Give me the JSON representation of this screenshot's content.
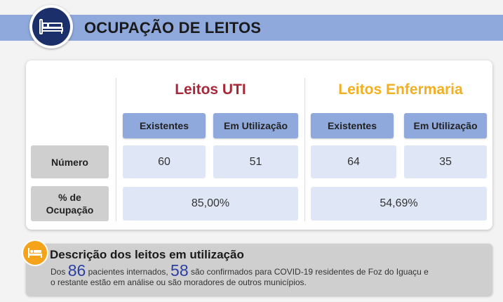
{
  "header": {
    "title": "OCUPAÇÃO DE LEITOS",
    "icon": "bed-icon",
    "band_color": "#8fa9dc",
    "circle_color": "#1b2f6b"
  },
  "uti": {
    "title": "Leitos UTI",
    "title_color": "#a8283a",
    "col_existentes": "Existentes",
    "col_em_utilizacao": "Em Utilização",
    "existentes": "60",
    "em_utilizacao": "51",
    "ocupacao": "85,00%"
  },
  "enfermaria": {
    "title": "Leitos Enfermaria",
    "title_color": "#f2b01e",
    "col_existentes": "Existentes",
    "col_em_utilizacao": "Em Utilização",
    "existentes": "64",
    "em_utilizacao": "35",
    "ocupacao": "54,69%"
  },
  "rows": {
    "numero": "Número",
    "ocupacao_line1": "% de",
    "ocupacao_line2": "Ocupação"
  },
  "descricao": {
    "icon": "bed-icon",
    "title": "Descrição dos leitos em utilização",
    "prefix": "Dos",
    "pacientes": "86",
    "mid": "pacientes internados,",
    "confirmados": "58",
    "suffix_line1": "são confirmados para COVID-19 residentes de Foz do Iguaçu e",
    "line2": "o restante estão em análise ou são moradores de outros municípios."
  }
}
